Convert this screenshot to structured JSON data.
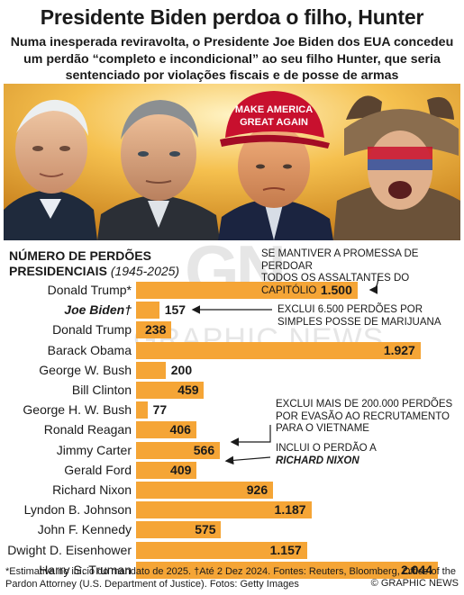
{
  "header": {
    "title": "Presidente Biden perdoa o filho, Hunter",
    "subtitle": "Numa inesperada reviravolta, o Presidente Joe Biden dos EUA concedeu um perdão “completo e incondicional” ao seu filho Hunter, que seria sentenciado por violações fiscais e de posse de armas"
  },
  "chart_data": {
    "type": "bar",
    "orientation": "horizontal",
    "title": "NÚMERO DE PERDÕES PRESIDENCIAIS",
    "title_range": "(1945-2025)",
    "categories": [
      "Donald Trump*",
      "Joe Biden†",
      "Donald Trump",
      "Barack Obama",
      "George W. Bush",
      "Bill Clinton",
      "George H. W. Bush",
      "Ronald Reagan",
      "Jimmy Carter",
      "Gerald Ford",
      "Richard Nixon",
      "Lyndon B. Johnson",
      "John F. Kennedy",
      "Dwight D. Eisenhower",
      "Harry S. Truman"
    ],
    "values": [
      1500,
      157,
      238,
      1927,
      200,
      459,
      77,
      406,
      566,
      409,
      926,
      1187,
      575,
      1157,
      2044
    ],
    "value_labels": [
      "1.500",
      "157",
      "238",
      "1.927",
      "200",
      "459",
      "77",
      "406",
      "566",
      "409",
      "926",
      "1.187",
      "575",
      "1.157",
      "2.044"
    ],
    "highlight_index": 1,
    "bar_color": "#f5a536",
    "xlim": [
      0,
      2044
    ],
    "grid": false,
    "annotations": [
      {
        "index": 0,
        "lines": [
          "SE MANTIVER A PROMESSA DE PERDOAR",
          "TODOS OS ASSALTANTES DO CAPITÓLIO"
        ]
      },
      {
        "index": 1,
        "lines": [
          "EXCLUI 6.500 PERDÕES POR",
          "SIMPLES POSSE DE MARIJUANA"
        ]
      },
      {
        "index": 8,
        "lines": [
          "EXCLUI MAIS DE 200.000 PERDÕES",
          "POR EVASÃO AO RECRUTAMENTO",
          "PARA O VIETNAME"
        ]
      },
      {
        "index": 9,
        "lines": [
          "INCLUI O PERDÃO A"
        ],
        "emphasis": "RICHARD NIXON"
      }
    ]
  },
  "footer": {
    "text": "*Estimativa no início do mandato de 2025. †Até 2 Dez 2024. Fontes: Reuters, Bloomberg, Office of the Pardon Attorney (U.S. Department of Justice). Fotos: Getty Images",
    "credit": "© GRAPHIC NEWS"
  },
  "photo": {
    "description_icons": [
      "joe-biden-portrait",
      "hunter-biden-portrait",
      "donald-trump-portrait",
      "capitol-rioter-portrait"
    ],
    "hat_text": [
      "MAKE AMERICA",
      "GREAT AGAIN"
    ]
  },
  "colors": {
    "bar": "#f5a536",
    "text": "#1a1a1a",
    "hat": "#c8102e",
    "backdrop": "#f2b640"
  }
}
